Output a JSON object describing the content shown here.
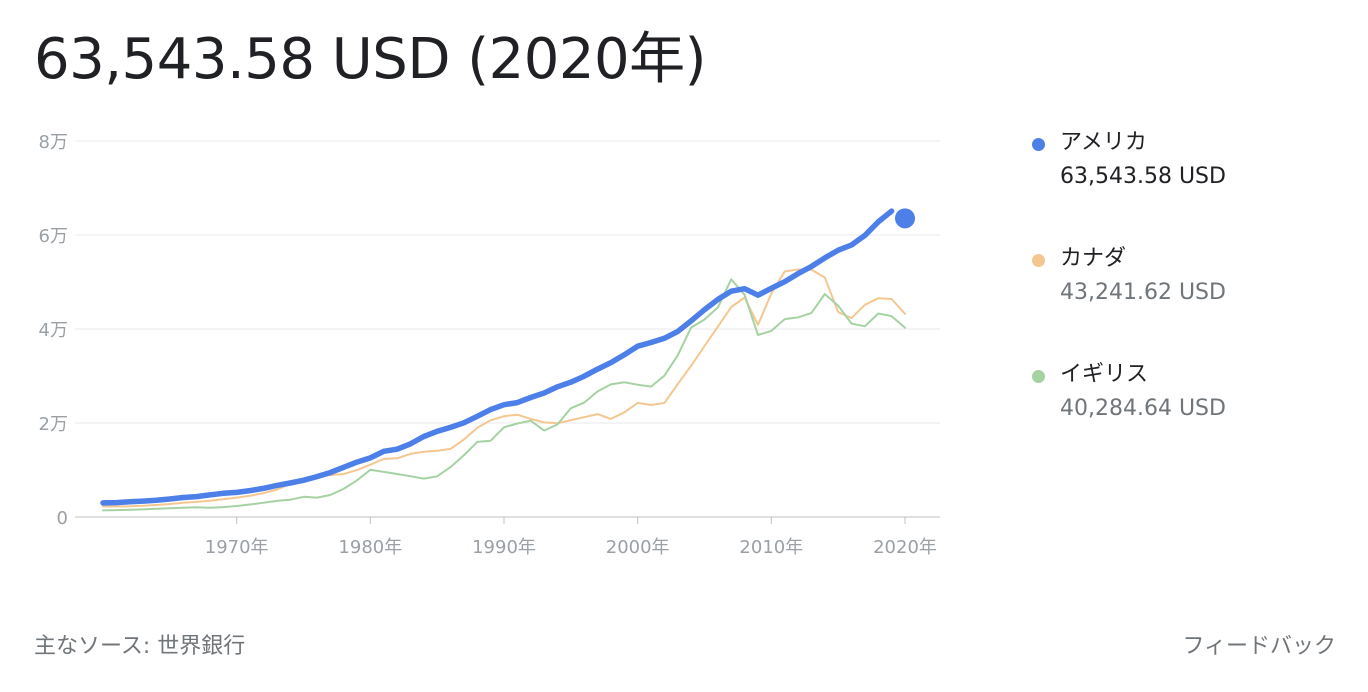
{
  "headline": "63,543.58 USD (2020年)",
  "legend": [
    {
      "name": "アメリカ",
      "value": "63,543.58 USD",
      "color": "#4d7fe8",
      "active": true
    },
    {
      "name": "カナダ",
      "value": "43,241.62 USD",
      "color": "#f4c790",
      "active": false
    },
    {
      "name": "イギリス",
      "value": "40,284.64 USD",
      "color": "#a6d2a3",
      "active": false
    }
  ],
  "footer": {
    "source": "主なソース: 世界銀行",
    "feedback": "フィードバック"
  },
  "chart_data": {
    "type": "line",
    "title": "",
    "xlabel": "",
    "ylabel": "",
    "xlim": [
      1960,
      2020
    ],
    "ylim": [
      0,
      80000
    ],
    "grid": true,
    "legend_position": "right",
    "x_ticks": [
      {
        "value": 1970,
        "label": "1970年"
      },
      {
        "value": 1980,
        "label": "1980年"
      },
      {
        "value": 1990,
        "label": "1990年"
      },
      {
        "value": 2000,
        "label": "2000年"
      },
      {
        "value": 2010,
        "label": "2010年"
      },
      {
        "value": 2020,
        "label": "2020年"
      }
    ],
    "y_ticks": [
      {
        "value": 0,
        "label": "0"
      },
      {
        "value": 20000,
        "label": "2万"
      },
      {
        "value": 40000,
        "label": "4万"
      },
      {
        "value": 60000,
        "label": "6万"
      },
      {
        "value": 80000,
        "label": "8万"
      }
    ],
    "x": [
      1960,
      1961,
      1962,
      1963,
      1964,
      1965,
      1966,
      1967,
      1968,
      1969,
      1970,
      1971,
      1972,
      1973,
      1974,
      1975,
      1976,
      1977,
      1978,
      1979,
      1980,
      1981,
      1982,
      1983,
      1984,
      1985,
      1986,
      1987,
      1988,
      1989,
      1990,
      1991,
      1992,
      1993,
      1994,
      1995,
      1996,
      1997,
      1998,
      1999,
      2000,
      2001,
      2002,
      2003,
      2004,
      2005,
      2006,
      2007,
      2008,
      2009,
      2010,
      2011,
      2012,
      2013,
      2014,
      2015,
      2016,
      2017,
      2018,
      2019,
      2020
    ],
    "series": [
      {
        "name": "アメリカ",
        "color": "#4d7fe8",
        "highlight_last": true,
        "values": [
          3007,
          3067,
          3244,
          3375,
          3574,
          3828,
          4146,
          4336,
          4696,
          5032,
          5234,
          5609,
          6094,
          6726,
          7226,
          7801,
          8592,
          9453,
          10565,
          11674,
          12575,
          13976,
          14434,
          15544,
          17121,
          18237,
          19071,
          20039,
          21417,
          22857,
          23889,
          24342,
          25419,
          26387,
          27695,
          28691,
          29968,
          31459,
          32854,
          34515,
          36335,
          37133,
          38023,
          39497,
          41713,
          44115,
          46299,
          48050,
          48570,
          47195,
          48651,
          50066,
          51784,
          53291,
          55124,
          56763,
          57867,
          59915,
          62805,
          65095,
          63544
        ]
      },
      {
        "name": "カナダ",
        "color": "#f4c790",
        "highlight_last": false,
        "values": [
          2259,
          2240,
          2269,
          2374,
          2555,
          2770,
          3047,
          3217,
          3462,
          3764,
          4122,
          4520,
          5090,
          5839,
          7033,
          7511,
          8810,
          8932,
          9124,
          9973,
          11135,
          12338,
          12482,
          13425,
          13877,
          14102,
          14479,
          16484,
          18992,
          20574,
          21448,
          21769,
          20881,
          20121,
          19935,
          20614,
          21227,
          21901,
          20871,
          22266,
          24271,
          23822,
          24255,
          28300,
          32144,
          36383,
          40504,
          44659,
          46711,
          40876,
          47562,
          52224,
          52670,
          52635,
          50956,
          43596,
          42316,
          45149,
          46549,
          46374,
          43242
        ]
      },
      {
        "name": "イギリス",
        "color": "#a6d2a3",
        "highlight_last": false,
        "values": [
          1398,
          1472,
          1526,
          1613,
          1749,
          1873,
          1986,
          2059,
          1952,
          2101,
          2348,
          2650,
          3030,
          3426,
          3666,
          4300,
          4138,
          4682,
          5976,
          7804,
          10032,
          9599,
          9146,
          8691,
          8179,
          8652,
          10611,
          13119,
          15987,
          16239,
          19095,
          19900,
          20487,
          18389,
          19709,
          23123,
          24333,
          26734,
          28214,
          28670,
          28150,
          27744,
          30057,
          34420,
          40290,
          42030,
          44599,
          50566,
          47287,
          38713,
          39599,
          42110,
          42463,
          43426,
          47439,
          44964,
          41146,
          40572,
          43306,
          42747,
          40285
        ]
      }
    ]
  }
}
